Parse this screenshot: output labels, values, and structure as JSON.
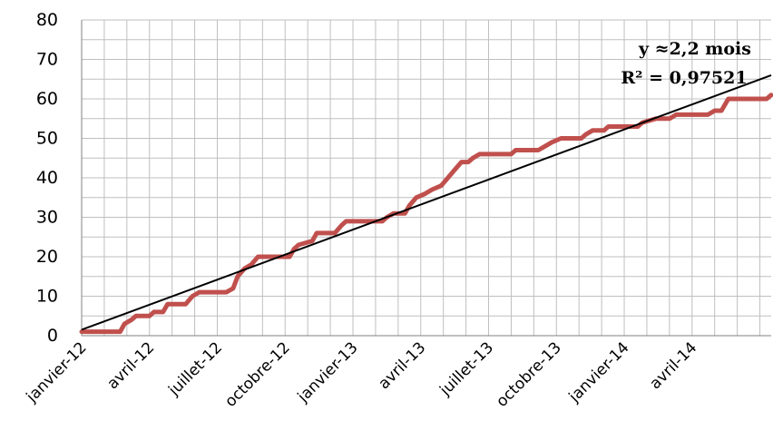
{
  "chart_data": {
    "type": "line",
    "title": "",
    "xlabel": "",
    "ylabel": "",
    "grid": true,
    "legend": "none",
    "xlim_months": [
      0,
      30.5
    ],
    "ylim": [
      0,
      80
    ],
    "y_ticks": [
      0,
      10,
      20,
      30,
      40,
      50,
      60,
      70,
      80
    ],
    "x_tick_labels": [
      "janvier-12",
      "avril-12",
      "juillet-12",
      "octobre-12",
      "janvier-13",
      "avril-13",
      "juillet-13",
      "octobre-13",
      "janvier-14",
      "avril-14"
    ],
    "colors": {
      "series": "#c0504d",
      "trend": "#000000",
      "grid": "#bfbfbf",
      "axis": "#808080"
    },
    "series": [
      {
        "name": "",
        "points": [
          [
            0.0,
            1
          ],
          [
            1.7,
            1
          ],
          [
            1.9,
            3
          ],
          [
            2.2,
            4
          ],
          [
            2.4,
            5
          ],
          [
            3.0,
            5
          ],
          [
            3.2,
            6
          ],
          [
            3.6,
            6
          ],
          [
            3.8,
            8
          ],
          [
            4.6,
            8
          ],
          [
            4.9,
            10
          ],
          [
            5.2,
            11
          ],
          [
            6.4,
            11
          ],
          [
            6.7,
            12
          ],
          [
            6.9,
            15
          ],
          [
            7.2,
            17
          ],
          [
            7.5,
            18
          ],
          [
            7.8,
            20
          ],
          [
            9.2,
            20
          ],
          [
            9.4,
            22
          ],
          [
            9.6,
            23
          ],
          [
            10.2,
            24
          ],
          [
            10.4,
            26
          ],
          [
            11.2,
            26
          ],
          [
            11.5,
            28
          ],
          [
            11.7,
            29
          ],
          [
            13.3,
            29
          ],
          [
            13.5,
            30
          ],
          [
            13.8,
            31
          ],
          [
            14.3,
            31
          ],
          [
            14.5,
            33
          ],
          [
            14.8,
            35
          ],
          [
            15.2,
            36
          ],
          [
            15.5,
            37
          ],
          [
            15.9,
            38
          ],
          [
            16.2,
            40
          ],
          [
            16.5,
            42
          ],
          [
            16.8,
            44
          ],
          [
            17.1,
            44
          ],
          [
            17.3,
            45
          ],
          [
            17.6,
            46
          ],
          [
            19.0,
            46
          ],
          [
            19.2,
            47
          ],
          [
            20.2,
            47
          ],
          [
            20.5,
            48
          ],
          [
            20.8,
            49
          ],
          [
            21.2,
            50
          ],
          [
            22.1,
            50
          ],
          [
            22.3,
            51
          ],
          [
            22.6,
            52
          ],
          [
            23.1,
            52
          ],
          [
            23.3,
            53
          ],
          [
            24.6,
            53
          ],
          [
            24.8,
            54
          ],
          [
            25.4,
            55
          ],
          [
            26.0,
            55
          ],
          [
            26.3,
            56
          ],
          [
            27.7,
            56
          ],
          [
            28.0,
            57
          ],
          [
            28.3,
            57
          ],
          [
            28.6,
            60
          ],
          [
            30.3,
            60
          ],
          [
            30.5,
            61
          ]
        ]
      }
    ],
    "trendline": {
      "type": "linear",
      "start": [
        0.0,
        1.5
      ],
      "end": [
        30.5,
        66
      ],
      "equation": "y ≈2,2 mois",
      "r_squared": "R² = 0,97521"
    }
  }
}
